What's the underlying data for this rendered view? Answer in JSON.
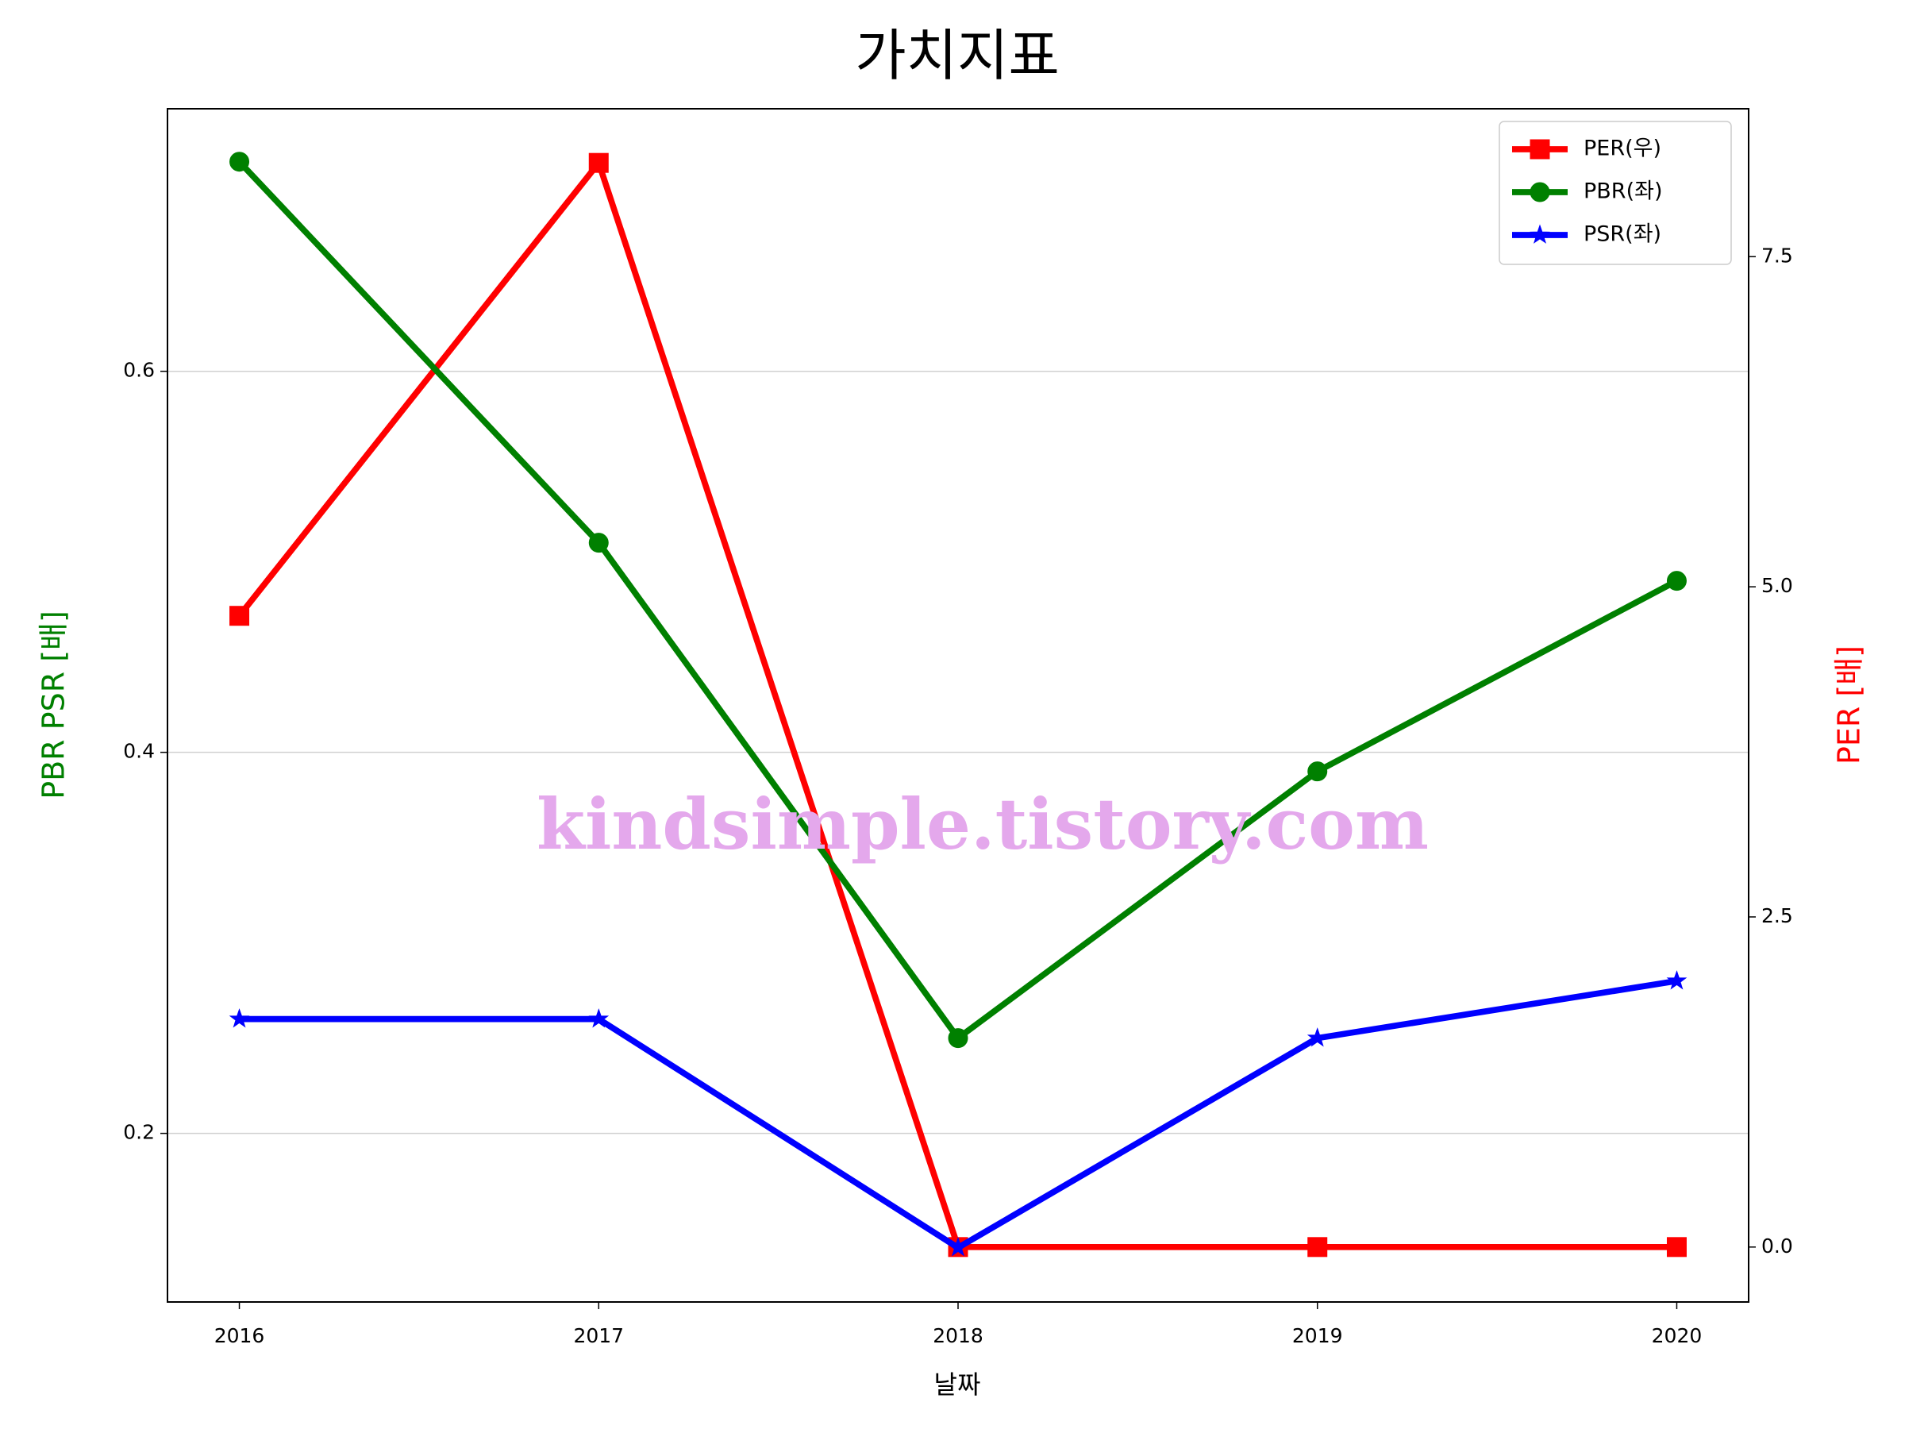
{
  "chart_data": {
    "type": "line",
    "title": "가치지표",
    "xlabel": "날짜",
    "ylabel": "PBR PSR [배]",
    "ylabel_color": "#008000",
    "y2label": "PER [배]",
    "y2label_color": "#ff0000",
    "watermark": "kindsimple.tistory.com",
    "x": [
      2016,
      2017,
      2018,
      2019,
      2020
    ],
    "xlim": [
      2015.8,
      2020.2
    ],
    "xticks": [
      2016,
      2017,
      2018,
      2019,
      2020
    ],
    "ylim": [
      0.1115,
      0.7378
    ],
    "yticks": [
      0.2,
      0.4,
      0.6
    ],
    "y2lim": [
      -0.416,
      8.62
    ],
    "y2ticks": [
      {
        "value": 0,
        "label": "0.0"
      },
      2.5,
      {
        "value": 5,
        "label": "5.0"
      },
      7.5
    ],
    "grid": true,
    "legend": "upper right",
    "series": [
      {
        "name": "PER(우)",
        "color": "#ff0000",
        "marker": "square",
        "axis": "y2",
        "values": [
          4.78,
          8.21,
          0,
          0,
          0
        ]
      },
      {
        "name": "PBR(좌)",
        "color": "#008000",
        "marker": "circle",
        "values": [
          0.71,
          0.51,
          0.25,
          0.39,
          0.49
        ]
      },
      {
        "name": "PSR(좌)",
        "color": "#0000ff",
        "marker": "star",
        "values": [
          0.26,
          0.26,
          0.14,
          0.25,
          0.28
        ]
      }
    ]
  }
}
